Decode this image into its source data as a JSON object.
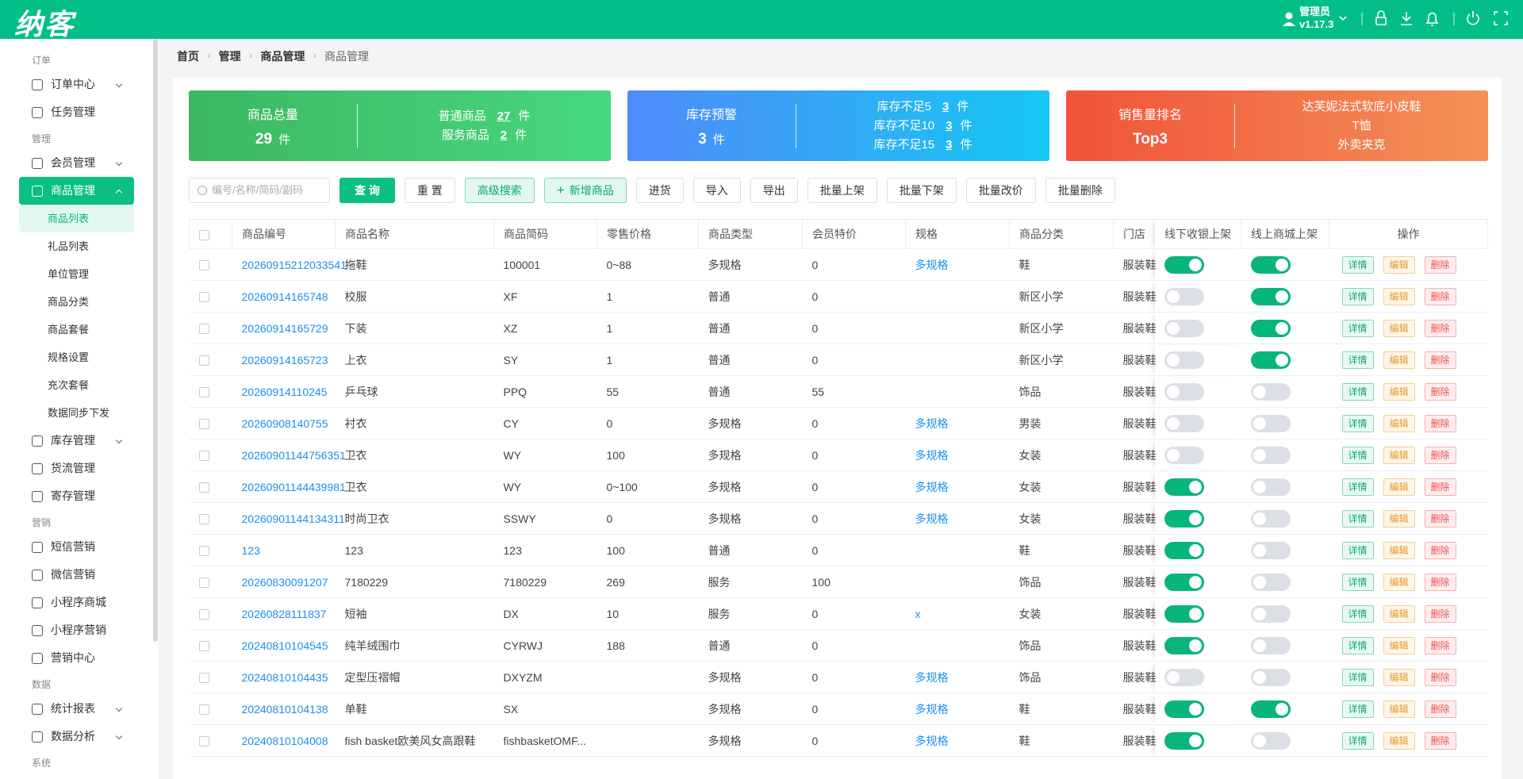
{
  "header": {
    "logo": "纳客",
    "user": "管理员",
    "version": "v1.17.3"
  },
  "sidebar": [
    {
      "group": "订单",
      "items": [
        {
          "label": "订单中心",
          "expandable": true
        },
        {
          "label": "任务管理"
        }
      ]
    },
    {
      "group": "管理",
      "items": [
        {
          "label": "会员管理",
          "expandable": true
        },
        {
          "label": "商品管理",
          "expandable": true,
          "expanded": true,
          "active": true,
          "children": [
            {
              "label": "商品列表",
              "active": true
            },
            {
              "label": "礼品列表"
            },
            {
              "label": "单位管理"
            },
            {
              "label": "商品分类"
            },
            {
              "label": "商品套餐"
            },
            {
              "label": "规格设置"
            },
            {
              "label": "充次套餐"
            },
            {
              "label": "数据同步下发"
            }
          ]
        },
        {
          "label": "库存管理",
          "expandable": true
        },
        {
          "label": "货流管理"
        },
        {
          "label": "寄存管理"
        }
      ]
    },
    {
      "group": "营销",
      "items": [
        {
          "label": "短信营销"
        },
        {
          "label": "微信营销"
        },
        {
          "label": "小程序商城"
        },
        {
          "label": "小程序营销"
        },
        {
          "label": "营销中心"
        }
      ]
    },
    {
      "group": "数据",
      "items": [
        {
          "label": "统计报表",
          "expandable": true
        },
        {
          "label": "数据分析",
          "expandable": true
        }
      ]
    },
    {
      "group": "系统",
      "items": []
    }
  ],
  "breadcrumb": [
    "首页",
    "管理",
    "商品管理",
    "商品管理"
  ],
  "stats": [
    {
      "title": "商品总量",
      "value": "29",
      "unit": "件",
      "lines": [
        {
          "label": "普通商品",
          "value": "27",
          "unit": "件"
        },
        {
          "label": "服务商品",
          "value": "2",
          "unit": "件"
        }
      ]
    },
    {
      "title": "库存预警",
      "value": "3",
      "unit": "件",
      "lines": [
        {
          "label": "库存不足5",
          "value": "3",
          "unit": "件"
        },
        {
          "label": "库存不足10",
          "value": "3",
          "unit": "件"
        },
        {
          "label": "库存不足15",
          "value": "3",
          "unit": "件"
        }
      ]
    },
    {
      "title": "销售量排名",
      "value": "Top3",
      "lines": [
        {
          "label": "达芙妮法式软底小皮鞋"
        },
        {
          "label": "T恤"
        },
        {
          "label": "外卖夹克"
        }
      ]
    }
  ],
  "toolbar": {
    "search_placeholder": "编号/名称/简码/副码",
    "buttons": [
      {
        "label": "查 询",
        "style": "primary"
      },
      {
        "label": "重 置",
        "style": "plain"
      },
      {
        "label": "高级搜索",
        "style": "light"
      },
      {
        "label": "新增商品",
        "style": "add"
      },
      {
        "label": "进货",
        "style": "plain"
      },
      {
        "label": "导入",
        "style": "plain"
      },
      {
        "label": "导出",
        "style": "plain"
      },
      {
        "label": "批量上架",
        "style": "plain"
      },
      {
        "label": "批量下架",
        "style": "plain"
      },
      {
        "label": "批量改价",
        "style": "plain"
      },
      {
        "label": "批量删除",
        "style": "plain"
      }
    ]
  },
  "table": {
    "columns": [
      "商品编号",
      "商品名称",
      "商品简码",
      "零售价格",
      "商品类型",
      "会员特价",
      "规格",
      "商品分类",
      "门店",
      "线下收银上架",
      "线上商城上架",
      "操作"
    ],
    "link_columns": [
      0,
      6
    ],
    "actions": [
      "详情",
      "编辑",
      "删除"
    ],
    "rows": [
      {
        "cells": [
          "20260915212033541",
          "拖鞋",
          "100001",
          "0~88",
          "多规格",
          "0",
          "多规格",
          "鞋",
          "服装鞋"
        ],
        "offline": true,
        "online": true
      },
      {
        "cells": [
          "20260914165748",
          "校服",
          "XF",
          "1",
          "普通",
          "0",
          null,
          "新区小学",
          "服装鞋"
        ],
        "offline": false,
        "online": true
      },
      {
        "cells": [
          "20260914165729",
          "下装",
          "XZ",
          "1",
          "普通",
          "0",
          null,
          "新区小学",
          "服装鞋"
        ],
        "offline": false,
        "online": true
      },
      {
        "cells": [
          "20260914165723",
          "上衣",
          "SY",
          "1",
          "普通",
          "0",
          null,
          "新区小学",
          "服装鞋"
        ],
        "offline": false,
        "online": true
      },
      {
        "cells": [
          "20260914110245",
          "乒乓球",
          "PPQ",
          "55",
          "普通",
          "55",
          null,
          "饰品",
          "服装鞋"
        ],
        "offline": false,
        "online": false
      },
      {
        "cells": [
          "20260908140755",
          "衬衣",
          "CY",
          "0",
          "多规格",
          "0",
          "多规格",
          "男装",
          "服装鞋"
        ],
        "offline": false,
        "online": false
      },
      {
        "cells": [
          "20260901144756351",
          "卫衣",
          "WY",
          "100",
          "多规格",
          "0",
          "多规格",
          "女装",
          "服装鞋"
        ],
        "offline": false,
        "online": false
      },
      {
        "cells": [
          "20260901144439981",
          "卫衣",
          "WY",
          "0~100",
          "多规格",
          "0",
          "多规格",
          "女装",
          "服装鞋"
        ],
        "offline": true,
        "online": false
      },
      {
        "cells": [
          "20260901144134311",
          "时尚卫衣",
          "SSWY",
          "0",
          "多规格",
          "0",
          "多规格",
          "女装",
          "服装鞋"
        ],
        "offline": true,
        "online": false
      },
      {
        "cells": [
          "123",
          "123",
          "123",
          "100",
          "普通",
          "0",
          null,
          "鞋",
          "服装鞋"
        ],
        "offline": true,
        "online": false
      },
      {
        "cells": [
          "20260830091207",
          "7180229",
          "7180229",
          "269",
          "服务",
          "100",
          null,
          "饰品",
          "服装鞋"
        ],
        "offline": true,
        "online": false
      },
      {
        "cells": [
          "20260828111837",
          "短袖",
          "DX",
          "10",
          "服务",
          "0",
          "x",
          "女装",
          "服装鞋"
        ],
        "offline": true,
        "online": false
      },
      {
        "cells": [
          "20240810104545",
          "纯羊绒围巾",
          "CYRWJ",
          "188",
          "普通",
          "0",
          null,
          "饰品",
          "服装鞋"
        ],
        "offline": true,
        "online": false
      },
      {
        "cells": [
          "20240810104435",
          "定型压褶帽",
          "DXYZM",
          null,
          "多规格",
          "0",
          "多规格",
          "饰品",
          "服装鞋"
        ],
        "offline": false,
        "online": false
      },
      {
        "cells": [
          "20240810104138",
          "单鞋",
          "SX",
          null,
          "多规格",
          "0",
          "多规格",
          "鞋",
          "服装鞋"
        ],
        "offline": true,
        "online": true
      },
      {
        "cells": [
          "20240810104008",
          "fish basket欧美风女高跟鞋",
          "fishbasketOMF...",
          null,
          "多规格",
          "0",
          "多规格",
          "鞋",
          "服装鞋"
        ],
        "offline": true,
        "online": false
      }
    ]
  }
}
